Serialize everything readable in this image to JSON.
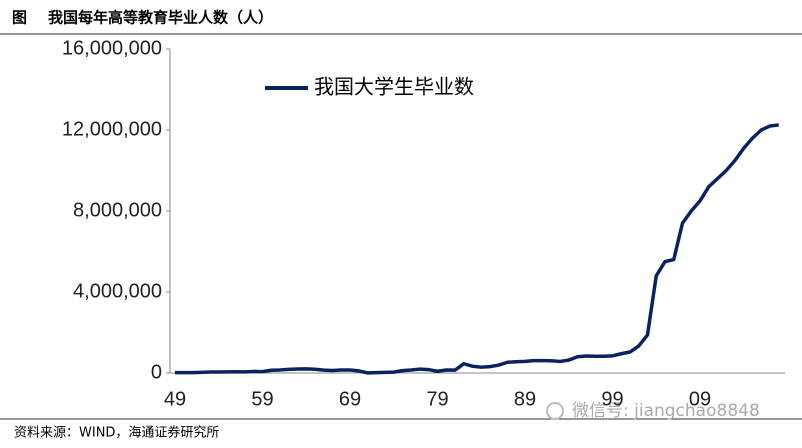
{
  "chart_data": {
    "type": "line",
    "figure_label": "图",
    "title": "我国每年高等教育毕业人数（人）",
    "source": "资料来源：WIND，海通证券研究所",
    "watermark": "微信号: jiangchao8848",
    "categories": [
      "49",
      null,
      null,
      null,
      null,
      null,
      null,
      null,
      null,
      null,
      "59",
      null,
      null,
      null,
      null,
      null,
      null,
      null,
      null,
      null,
      "69",
      null,
      null,
      null,
      null,
      null,
      null,
      null,
      null,
      null,
      "79",
      null,
      null,
      null,
      null,
      null,
      null,
      null,
      null,
      null,
      "89",
      null,
      null,
      null,
      null,
      null,
      null,
      null,
      null,
      null,
      "99",
      null,
      null,
      null,
      null,
      null,
      null,
      null,
      null,
      null,
      "09",
      null,
      null,
      null,
      null,
      null,
      null,
      null,
      null,
      null
    ],
    "series": [
      {
        "name": "我国大学生毕业数",
        "color": "#0c2260",
        "values": [
          21000,
          18000,
          19000,
          32000,
          48000,
          47000,
          55000,
          63000,
          56000,
          72000,
          70000,
          136000,
          151000,
          177000,
          200000,
          204000,
          186000,
          141000,
          125000,
          150000,
          150000,
          103000,
          6000,
          17000,
          30000,
          43000,
          119000,
          149000,
          194000,
          165000,
          85000,
          147000,
          140000,
          457000,
          335000,
          287000,
          316000,
          393000,
          532000,
          553000,
          576000,
          614000,
          614000,
          604000,
          571000,
          637000,
          805000,
          839000,
          829000,
          830000,
          848000,
          950000,
          1036000,
          1337000,
          1880000,
          4800000,
          5500000,
          5600000,
          7400000,
          8000000,
          8500000,
          9200000,
          9600000,
          10000000,
          10500000,
          11100000,
          11600000,
          12000000,
          12200000,
          12250000
        ]
      }
    ],
    "ylim": [
      0,
      16000000
    ],
    "yticks": [
      0,
      {
        "value": 4000000,
        "label": "4,000,000"
      },
      {
        "value": 8000000,
        "label": "8,000,000"
      },
      {
        "value": 12000000,
        "label": "12,000,000"
      },
      {
        "value": 16000000,
        "label": "16,000,000"
      }
    ],
    "grid": false
  }
}
